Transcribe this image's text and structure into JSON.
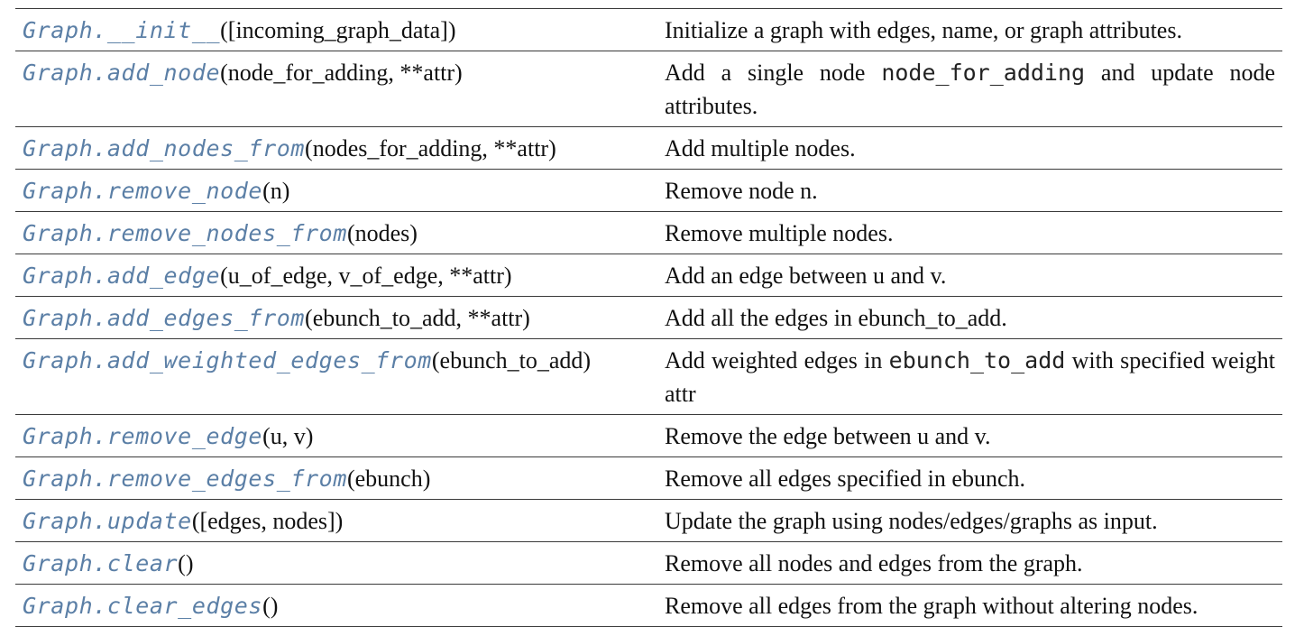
{
  "colors": {
    "link": "#5b7fa6",
    "text": "#111111",
    "rule": "#3a3a3a"
  },
  "rows": [
    {
      "fn": "Graph.__init__",
      "params": "([incoming_graph_data])",
      "desc": [
        {
          "t": "Initialize a graph with edges, name, or graph attributes."
        }
      ]
    },
    {
      "fn": "Graph.add_node",
      "params": "(node_for_adding, **attr)",
      "desc": [
        {
          "t": "Add a single node "
        },
        {
          "c": "node_for_adding"
        },
        {
          "t": " and update node attributes."
        }
      ]
    },
    {
      "fn": "Graph.add_nodes_from",
      "params": "(nodes_for_adding, **attr)",
      "desc": [
        {
          "t": "Add multiple nodes."
        }
      ]
    },
    {
      "fn": "Graph.remove_node",
      "params": "(n)",
      "desc": [
        {
          "t": "Remove node n."
        }
      ]
    },
    {
      "fn": "Graph.remove_nodes_from",
      "params": "(nodes)",
      "desc": [
        {
          "t": "Remove multiple nodes."
        }
      ]
    },
    {
      "fn": "Graph.add_edge",
      "params": "(u_of_edge, v_of_edge, **attr)",
      "desc": [
        {
          "t": "Add an edge between u and v."
        }
      ]
    },
    {
      "fn": "Graph.add_edges_from",
      "params": "(ebunch_to_add, **attr)",
      "desc": [
        {
          "t": "Add all the edges in ebunch_to_add."
        }
      ]
    },
    {
      "fn": "Graph.add_weighted_edges_from",
      "params": "(ebunch_to_add)",
      "nowrap": true,
      "desc": [
        {
          "t": "Add weighted edges in "
        },
        {
          "c": "ebunch_to_add"
        },
        {
          "t": " with specified weight attr"
        }
      ]
    },
    {
      "fn": "Graph.remove_edge",
      "params": "(u, v)",
      "desc": [
        {
          "t": "Remove the edge between u and v."
        }
      ]
    },
    {
      "fn": "Graph.remove_edges_from",
      "params": "(ebunch)",
      "desc": [
        {
          "t": "Remove all edges specified in ebunch."
        }
      ]
    },
    {
      "fn": "Graph.update",
      "params": "([edges, nodes])",
      "desc": [
        {
          "t": "Update the graph using nodes/edges/graphs as input."
        }
      ]
    },
    {
      "fn": "Graph.clear",
      "params": "()",
      "desc": [
        {
          "t": "Remove all nodes and edges from the graph."
        }
      ]
    },
    {
      "fn": "Graph.clear_edges",
      "params": "()",
      "desc": [
        {
          "t": "Remove all edges from the graph without altering nodes."
        }
      ]
    }
  ]
}
